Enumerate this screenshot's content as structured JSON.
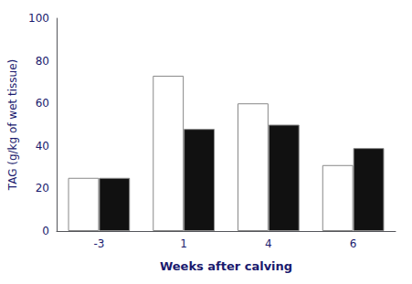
{
  "chart_data": {
    "type": "bar",
    "categories": [
      "-3",
      "1",
      "4",
      "6"
    ],
    "series": [
      {
        "color": "#ffffff",
        "values": [
          25,
          73,
          60,
          31
        ]
      },
      {
        "color": "#111111",
        "values": [
          25,
          48,
          50,
          39
        ]
      }
    ],
    "xlabel": "Weeks after calving",
    "ylabel": "TAG (g/kg of wet tissue)",
    "ylim": [
      0,
      100
    ],
    "yticks": [
      0,
      20,
      40,
      60,
      80,
      100
    ],
    "grid": false
  }
}
